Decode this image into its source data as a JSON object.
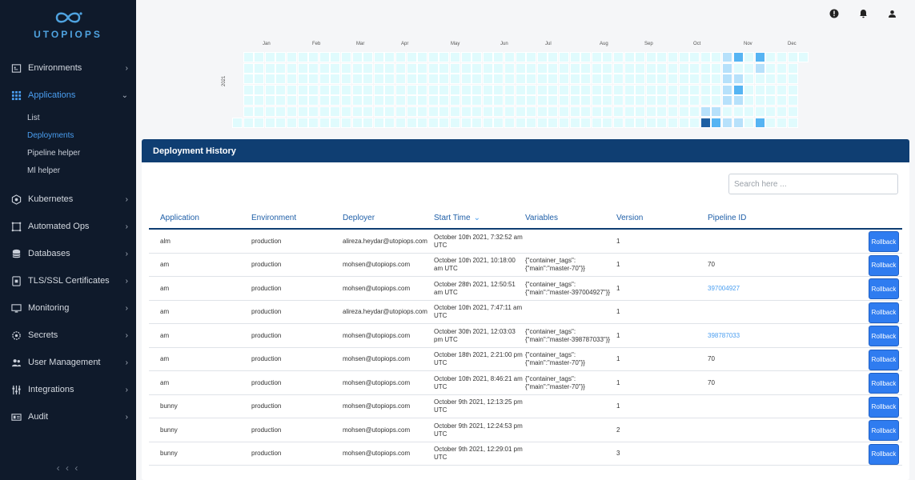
{
  "app": {
    "logo_text": "UTOPIOPS"
  },
  "sidebar": {
    "items": [
      {
        "label": "Environments",
        "icon": "environments-icon"
      },
      {
        "label": "Applications",
        "icon": "grid-icon",
        "active": true
      },
      {
        "label": "Kubernetes",
        "icon": "kubernetes-icon"
      },
      {
        "label": "Automated Ops",
        "icon": "automated-ops-icon"
      },
      {
        "label": "Databases",
        "icon": "database-icon"
      },
      {
        "label": "TLS/SSL Certificates",
        "icon": "certificate-icon"
      },
      {
        "label": "Monitoring",
        "icon": "monitor-icon"
      },
      {
        "label": "Secrets",
        "icon": "secrets-icon"
      },
      {
        "label": "User Management",
        "icon": "users-icon"
      },
      {
        "label": "Integrations",
        "icon": "integrations-icon"
      },
      {
        "label": "Audit",
        "icon": "audit-icon"
      }
    ],
    "sub_items": [
      {
        "label": "List"
      },
      {
        "label": "Deployments",
        "active": true
      },
      {
        "label": "Pipeline helper"
      },
      {
        "label": "Ml helper"
      }
    ]
  },
  "topbar": {
    "icons": [
      "alert-icon",
      "bell-icon",
      "user-icon"
    ]
  },
  "heatmap": {
    "year": "2021",
    "months": [
      "Jan",
      "Feb",
      "Mar",
      "Apr",
      "May",
      "Jun",
      "Jul",
      "Aug",
      "Sep",
      "Oct",
      "Nov",
      "Dec"
    ],
    "colors": {
      "empty": "#e0fbfd",
      "low": "#b7e1fb",
      "mid": "#56b4f3",
      "high": "#1e5fa3"
    }
  },
  "panel": {
    "title": "Deployment History",
    "search_placeholder": "Search here ...",
    "columns": [
      "Application",
      "Environment",
      "Deployer",
      "Start Time",
      "Variables",
      "Version",
      "Pipeline ID"
    ],
    "rollback_label": "Rollback",
    "rows": [
      {
        "application": "alm",
        "environment": "production",
        "deployer": "alireza.heydar@utopiops.com",
        "start_time": "October 10th 2021, 7:32:52 am UTC",
        "variables": "",
        "version": "1",
        "pipeline_id": "",
        "pipeline_link": false
      },
      {
        "application": "am",
        "environment": "production",
        "deployer": "mohsen@utopiops.com",
        "start_time": "October 10th 2021, 10:18:00 am UTC",
        "variables": "{\"container_tags\": {\"main\":\"master-70\"}}",
        "version": "1",
        "pipeline_id": "70",
        "pipeline_link": false
      },
      {
        "application": "am",
        "environment": "production",
        "deployer": "mohsen@utopiops.com",
        "start_time": "October 28th 2021, 12:50:51 am UTC",
        "variables": "{\"container_tags\": {\"main\":\"master-397004927\"}}",
        "version": "1",
        "pipeline_id": "397004927",
        "pipeline_link": true
      },
      {
        "application": "am",
        "environment": "production",
        "deployer": "alireza.heydar@utopiops.com",
        "start_time": "October 10th 2021, 7:47:11 am UTC",
        "variables": "",
        "version": "1",
        "pipeline_id": "",
        "pipeline_link": false
      },
      {
        "application": "am",
        "environment": "production",
        "deployer": "mohsen@utopiops.com",
        "start_time": "October 30th 2021, 12:03:03 pm UTC",
        "variables": "{\"container_tags\": {\"main\":\"master-398787033\"}}",
        "version": "1",
        "pipeline_id": "398787033",
        "pipeline_link": true
      },
      {
        "application": "am",
        "environment": "production",
        "deployer": "mohsen@utopiops.com",
        "start_time": "October 18th 2021, 2:21:00 pm UTC",
        "variables": "{\"container_tags\": {\"main\":\"master-70\"}}",
        "version": "1",
        "pipeline_id": "70",
        "pipeline_link": false
      },
      {
        "application": "am",
        "environment": "production",
        "deployer": "mohsen@utopiops.com",
        "start_time": "October 10th 2021, 8:46:21 am UTC",
        "variables": "{\"container_tags\": {\"main\":\"master-70\"}}",
        "version": "1",
        "pipeline_id": "70",
        "pipeline_link": false
      },
      {
        "application": "bunny",
        "environment": "production",
        "deployer": "mohsen@utopiops.com",
        "start_time": "October 9th 2021, 12:13:25 pm UTC",
        "variables": "",
        "version": "1",
        "pipeline_id": "",
        "pipeline_link": false
      },
      {
        "application": "bunny",
        "environment": "production",
        "deployer": "mohsen@utopiops.com",
        "start_time": "October 9th 2021, 12:24:53 pm UTC",
        "variables": "",
        "version": "2",
        "pipeline_id": "",
        "pipeline_link": false
      },
      {
        "application": "bunny",
        "environment": "production",
        "deployer": "mohsen@utopiops.com",
        "start_time": "October 9th 2021, 12:29:01 pm UTC",
        "variables": "",
        "version": "3",
        "pipeline_id": "",
        "pipeline_link": false
      }
    ]
  }
}
